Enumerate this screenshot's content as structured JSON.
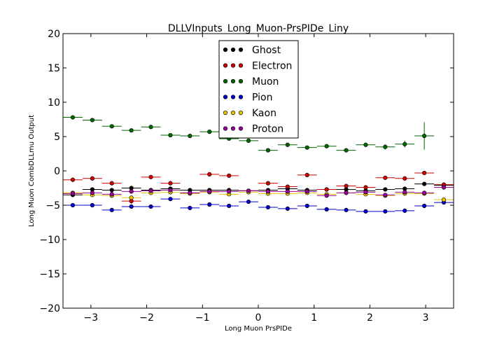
{
  "chart_data": {
    "type": "scatter",
    "title": "DLLVInputs_Long_Muon-PrsPIDe_Liny",
    "xlabel": "Long Muon PrsPIDe",
    "ylabel": "Long Muon CombDLLmu Output",
    "xlim": [
      -3.5,
      3.5
    ],
    "ylim": [
      -20,
      20
    ],
    "xticks": [
      -3,
      -2,
      -1,
      0,
      1,
      2,
      3
    ],
    "yticks": [
      -20,
      -15,
      -10,
      -5,
      0,
      5,
      10,
      15,
      20
    ],
    "xtick_labels": [
      "−3",
      "−2",
      "−1",
      "0",
      "1",
      "2",
      "3"
    ],
    "ytick_labels": [
      "−20",
      "−15",
      "−10",
      "−5",
      "0",
      "5",
      "10",
      "15",
      "20"
    ],
    "bin_half_width": 0.175,
    "x": [
      -3.325,
      -2.975,
      -2.625,
      -2.275,
      -1.925,
      -1.575,
      -1.225,
      -0.875,
      -0.525,
      -0.175,
      0.175,
      0.525,
      0.875,
      1.225,
      1.575,
      1.925,
      2.275,
      2.625,
      2.975,
      3.325
    ],
    "legend_position": "upper-center",
    "series": [
      {
        "name": "Ghost",
        "color": "#000000",
        "values": [
          -3.5,
          -2.7,
          -2.8,
          -2.5,
          -2.8,
          -2.6,
          -2.8,
          -2.8,
          -2.8,
          -2.9,
          -2.8,
          -2.6,
          -2.8,
          -2.7,
          -2.7,
          -2.9,
          -2.7,
          -2.6,
          -1.9,
          -2.1
        ],
        "errors": [
          0.2,
          0.2,
          0.2,
          0.2,
          0.2,
          0.2,
          0.2,
          0.2,
          0.2,
          0.2,
          0.2,
          0.2,
          0.2,
          0.2,
          0.2,
          0.2,
          0.2,
          0.2,
          0.3,
          0.3
        ]
      },
      {
        "name": "Electron",
        "color": "#cc0000",
        "values": [
          -1.3,
          -1.1,
          -1.8,
          -4.4,
          -0.9,
          -1.8,
          -3.2,
          -0.5,
          -0.7,
          -2.9,
          -1.8,
          -2.3,
          -0.6,
          -2.7,
          -2.2,
          -2.4,
          -1.0,
          -1.1,
          -0.3,
          -2.0
        ],
        "errors": [
          0.2,
          0.2,
          0.3,
          0.4,
          0.2,
          0.3,
          0.2,
          0.2,
          0.2,
          0.2,
          0.2,
          0.2,
          0.2,
          0.2,
          0.2,
          0.2,
          0.2,
          0.2,
          0.3,
          0.3
        ]
      },
      {
        "name": "Muon",
        "color": "#006600",
        "values": [
          7.8,
          7.4,
          6.5,
          5.9,
          6.4,
          5.2,
          5.1,
          5.7,
          4.7,
          4.4,
          3.0,
          3.8,
          3.4,
          3.6,
          3.0,
          3.8,
          3.5,
          3.9,
          5.1,
          null
        ],
        "errors": [
          0.2,
          0.2,
          0.2,
          0.2,
          0.2,
          0.2,
          0.2,
          0.2,
          0.2,
          0.2,
          0.2,
          0.2,
          0.2,
          0.2,
          0.2,
          0.3,
          0.4,
          0.5,
          2.0,
          null
        ]
      },
      {
        "name": "Pion",
        "color": "#0000cc",
        "values": [
          -5.0,
          -5.0,
          -5.7,
          -5.2,
          -5.2,
          -4.1,
          -5.4,
          -4.9,
          -5.1,
          -4.5,
          -5.3,
          -5.5,
          -5.1,
          -5.6,
          -5.7,
          -5.9,
          -5.9,
          -5.8,
          -5.1,
          -4.6
        ],
        "errors": [
          0.2,
          0.2,
          0.2,
          0.2,
          0.2,
          0.2,
          0.2,
          0.2,
          0.2,
          0.2,
          0.2,
          0.2,
          0.2,
          0.2,
          0.2,
          0.2,
          0.2,
          0.2,
          0.3,
          0.3
        ]
      },
      {
        "name": "Kaon",
        "color": "#e6c300",
        "values": [
          -3.2,
          -3.5,
          -3.6,
          -3.9,
          -3.2,
          -3.1,
          -3.3,
          -3.1,
          -3.4,
          -3.1,
          -3.3,
          -3.3,
          -3.2,
          -3.4,
          -3.2,
          -3.4,
          -3.6,
          -3.3,
          -3.3,
          -4.2
        ],
        "errors": [
          0.2,
          0.2,
          0.2,
          0.2,
          0.2,
          0.2,
          0.2,
          0.2,
          0.2,
          0.2,
          0.2,
          0.2,
          0.2,
          0.2,
          0.2,
          0.2,
          0.2,
          0.2,
          0.2,
          0.3
        ]
      },
      {
        "name": "Proton",
        "color": "#990099",
        "values": [
          -3.3,
          -3.2,
          -3.4,
          -3.0,
          -2.9,
          -2.8,
          -3.2,
          -3.0,
          -3.0,
          -2.9,
          -3.0,
          -3.0,
          -3.0,
          -3.6,
          -3.2,
          -3.1,
          -3.5,
          -3.1,
          -3.2,
          -2.4
        ],
        "errors": [
          0.2,
          0.2,
          0.2,
          0.2,
          0.2,
          0.2,
          0.2,
          0.2,
          0.2,
          0.2,
          0.2,
          0.2,
          0.2,
          0.2,
          0.2,
          0.2,
          0.2,
          0.2,
          0.2,
          0.3
        ]
      }
    ]
  }
}
